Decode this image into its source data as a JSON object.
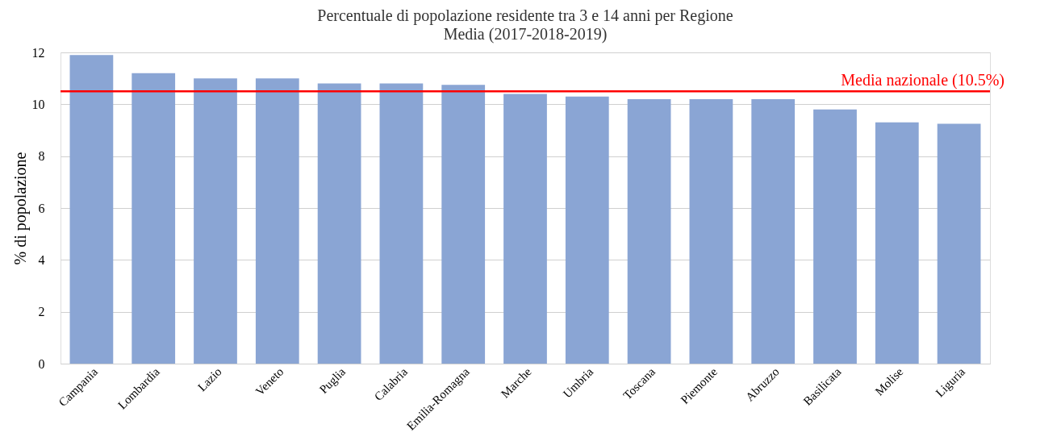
{
  "chart_data": {
    "type": "bar",
    "title": "Percentuale di popolazione residente tra 3 e 14 anni per Regione",
    "subtitle": "Media (2017-2018-2019)",
    "ylabel": "% di popolazione",
    "categories": [
      "Campania",
      "Lombardia",
      "Lazio",
      "Veneto",
      "Puglia",
      "Calabria",
      "Emilia-Romagna",
      "Marche",
      "Umbria",
      "Toscana",
      "Piemonte",
      "Abruzzo",
      "Basilicata",
      "Molise",
      "Liguria"
    ],
    "values": [
      11.9,
      11.2,
      11.0,
      11.0,
      10.8,
      10.8,
      10.75,
      10.4,
      10.3,
      10.2,
      10.2,
      10.2,
      9.8,
      9.3,
      9.25
    ],
    "color": "#8aa5d4",
    "ylim": [
      0,
      12
    ],
    "yticks": [
      0,
      2,
      4,
      6,
      8,
      10,
      12
    ],
    "grid": "y",
    "ref_lines": [
      {
        "axis": "y",
        "value": 10.5,
        "label": "Media nazionale (10.5%)",
        "color": "#ff0000"
      }
    ]
  }
}
